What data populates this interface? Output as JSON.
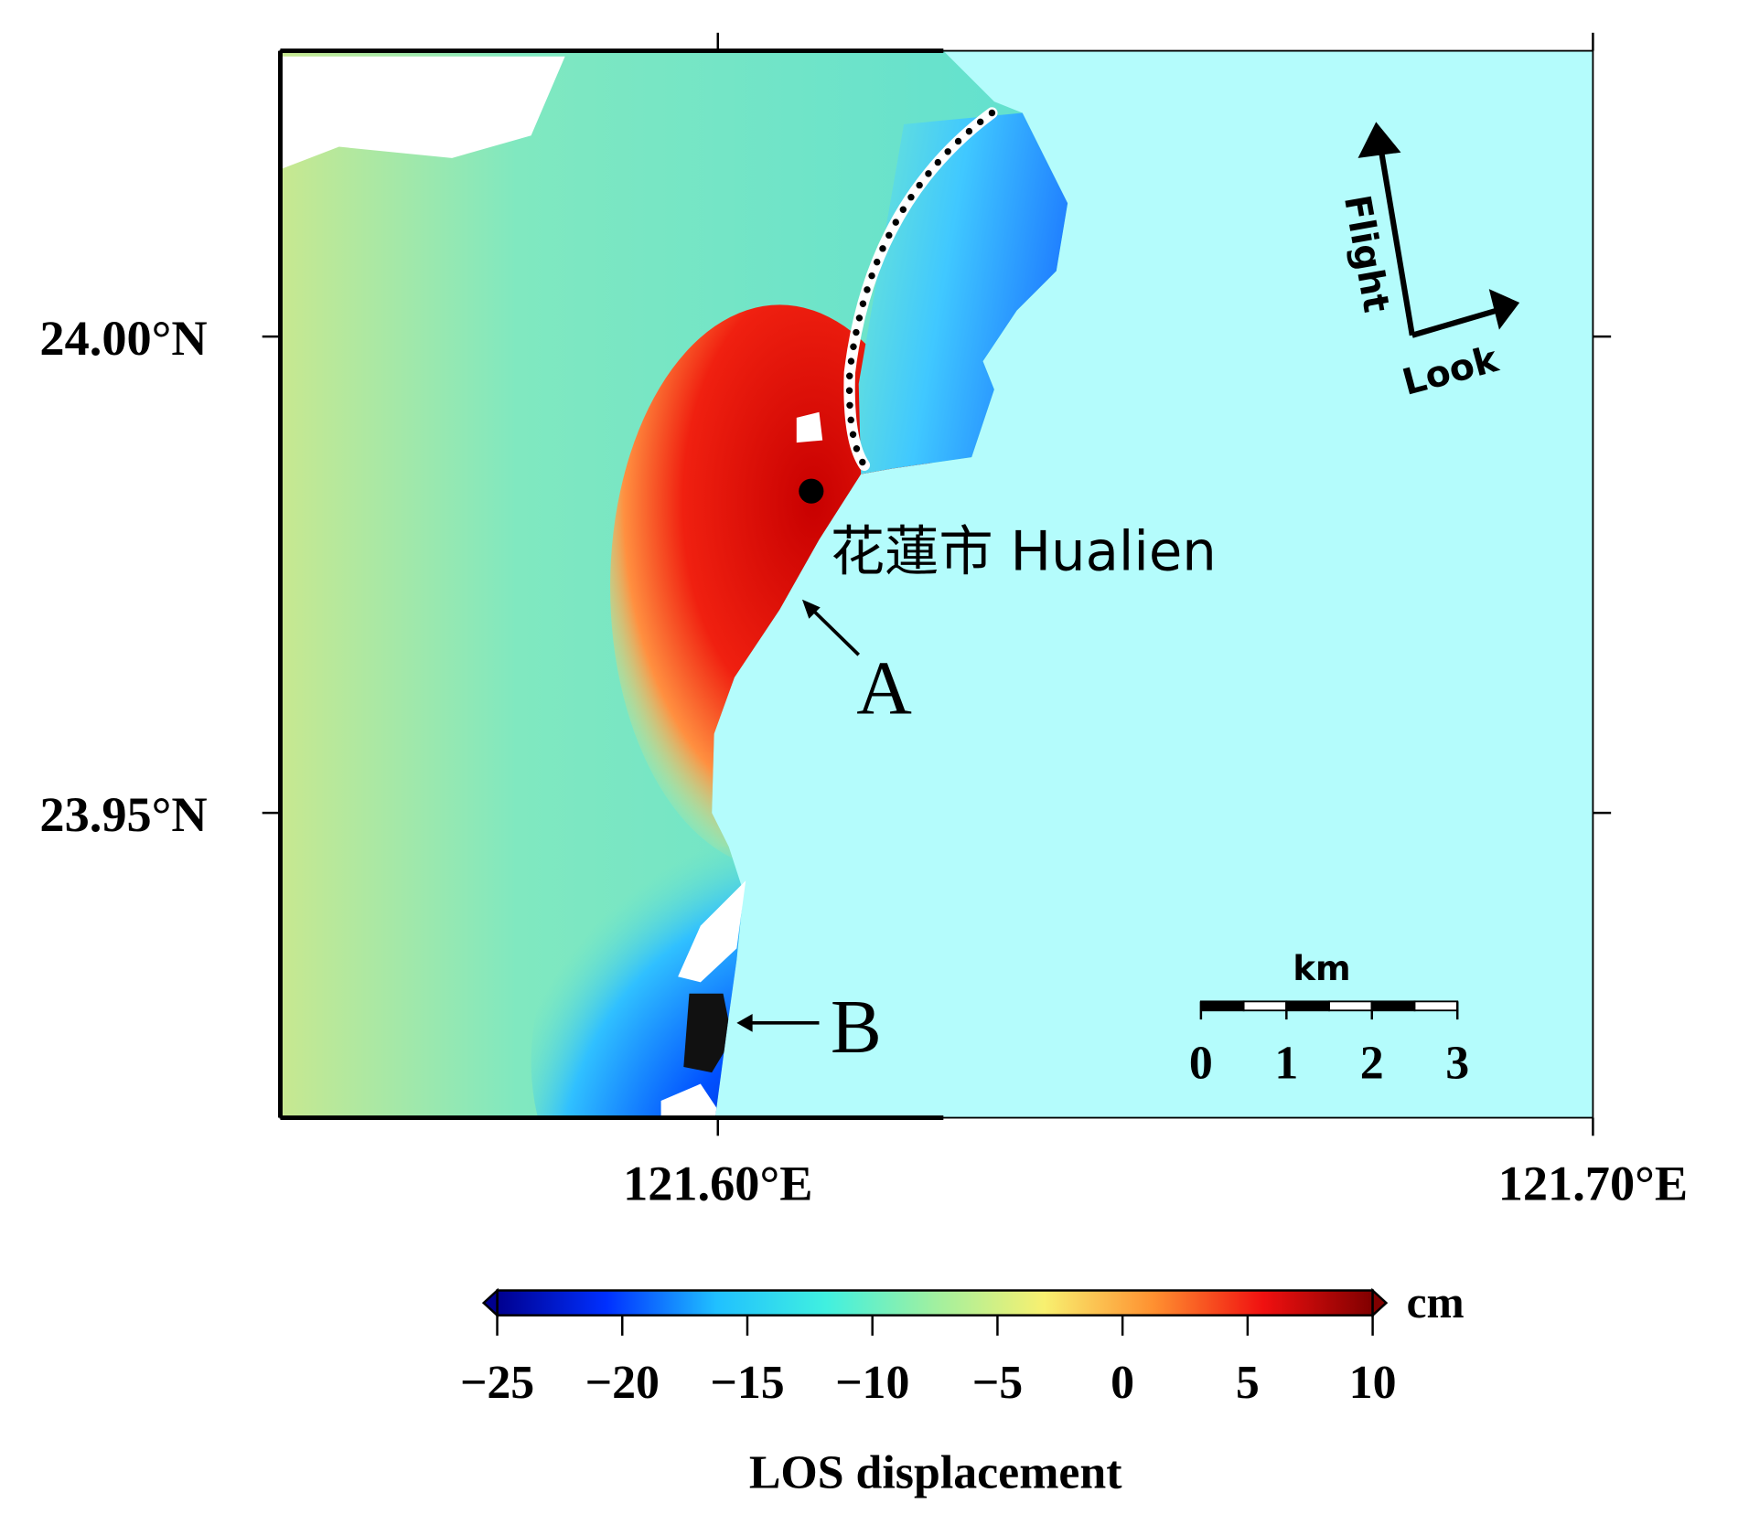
{
  "map": {
    "xlim": [
      121.55,
      121.7
    ],
    "ylim": [
      23.918,
      24.03
    ],
    "xticks": [
      {
        "value": 121.6,
        "label": "121.60°E"
      },
      {
        "value": 121.7,
        "label": "121.70°E"
      }
    ],
    "yticks": [
      {
        "value": 24.0,
        "label": "24.00°N"
      },
      {
        "value": 23.95,
        "label": "23.95°N"
      }
    ],
    "annotations": {
      "city": "花蓮市 Hualien",
      "a": "A",
      "b": "B"
    },
    "direction": {
      "flight": "Flight",
      "look": "Look"
    },
    "scale_bar": {
      "unit": "km",
      "lim": [
        0,
        3
      ],
      "ticks": [
        0,
        1,
        2,
        3
      ]
    }
  },
  "colorbar": {
    "unit": "cm",
    "label": "LOS displacement",
    "lim": [
      -25,
      10
    ],
    "ticks": [
      {
        "value": -25,
        "label": "−25"
      },
      {
        "value": -20,
        "label": "−20"
      },
      {
        "value": -15,
        "label": "−15"
      },
      {
        "value": -10,
        "label": "−10"
      },
      {
        "value": -5,
        "label": "−5"
      },
      0,
      5,
      10
    ],
    "colors": [
      "#00008f",
      "#0030ff",
      "#20c0ff",
      "#40f0e0",
      "#a0f0a0",
      "#f8f070",
      "#ff9030",
      "#f01010",
      "#800000"
    ]
  }
}
